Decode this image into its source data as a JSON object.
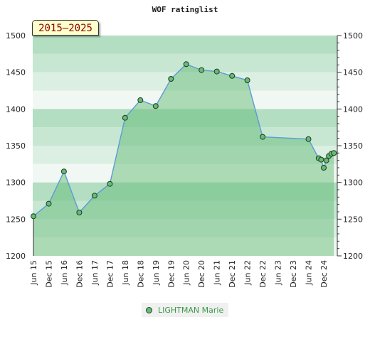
{
  "chart_data": {
    "type": "area",
    "title": "WOF ratinglist",
    "period_label": "2015–2025",
    "xlabel": "",
    "ylabel": "",
    "ylim": [
      1200,
      1500
    ],
    "y_ticks": [
      1200,
      1250,
      1300,
      1350,
      1400,
      1450,
      1500
    ],
    "x_tick_labels": [
      "Jun 15",
      "Dec 15",
      "Jun 16",
      "Dec 16",
      "Jun 17",
      "Dec 17",
      "Jun 18",
      "Dec 18",
      "Jun 19",
      "Dec 19",
      "Jun 20",
      "Dec 20",
      "Jun 21",
      "Dec 21",
      "Jun 22",
      "Dec 22",
      "Jun 23",
      "Dec 23",
      "Jun 24",
      "Dec 24"
    ],
    "series": [
      {
        "name": "LIGHTMAN Marie",
        "color": "#66bb77",
        "points": [
          {
            "x": "2015-06",
            "y": 1254
          },
          {
            "x": "2015-12",
            "y": 1271
          },
          {
            "x": "2016-06",
            "y": 1315
          },
          {
            "x": "2016-12",
            "y": 1259
          },
          {
            "x": "2017-06",
            "y": 1282
          },
          {
            "x": "2017-12",
            "y": 1298
          },
          {
            "x": "2018-06",
            "y": 1388
          },
          {
            "x": "2018-12",
            "y": 1412
          },
          {
            "x": "2019-06",
            "y": 1404
          },
          {
            "x": "2019-12",
            "y": 1441
          },
          {
            "x": "2020-06",
            "y": 1461
          },
          {
            "x": "2020-12",
            "y": 1453
          },
          {
            "x": "2021-06",
            "y": 1451
          },
          {
            "x": "2021-12",
            "y": 1445
          },
          {
            "x": "2022-06",
            "y": 1439
          },
          {
            "x": "2022-12",
            "y": 1362
          },
          {
            "x": "2024-06",
            "y": 1359
          },
          {
            "x": "2024-10",
            "y": 1333
          },
          {
            "x": "2024-11",
            "y": 1331
          },
          {
            "x": "2024-12",
            "y": 1320
          },
          {
            "x": "2025-01",
            "y": 1330
          },
          {
            "x": "2025-02",
            "y": 1336
          },
          {
            "x": "2025-03",
            "y": 1339
          },
          {
            "x": "2025-04",
            "y": 1340
          }
        ]
      }
    ],
    "grid": true,
    "legend_position": "bottom-center",
    "colors": {
      "line": "#5b9bd5",
      "area": "#66bb77",
      "band_dark": "#b3dec2",
      "band_light": "#f1f8f3"
    }
  }
}
